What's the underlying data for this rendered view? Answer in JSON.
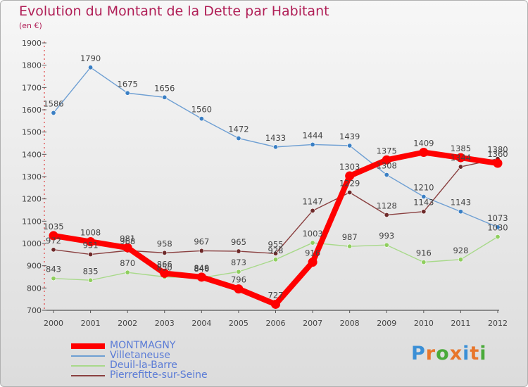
{
  "title": "Evolution du Montant de la Dette par Habitant",
  "subtitle": "(en €)",
  "brand": {
    "text": "Proxiti",
    "colors": [
      "#3a8fd6",
      "#e8762b",
      "#4aaa3a",
      "#e8762b",
      "#3a8fd6",
      "#e8762b",
      "#4aaa3a"
    ]
  },
  "chart_data": {
    "type": "line",
    "x": [
      "2000",
      "2001",
      "2002",
      "2003",
      "2004",
      "2005",
      "2006",
      "2007",
      "2008",
      "2009",
      "2010",
      "2011",
      "2012"
    ],
    "yticks": [
      "700",
      "800",
      "900",
      "1000",
      "1100",
      "1200",
      "1300",
      "1400",
      "1500",
      "1600",
      "1700",
      "1800",
      "1900"
    ],
    "ylim": [
      700,
      1900
    ],
    "grid": false,
    "legend_position": "bottom-left",
    "series": [
      {
        "name": "Villetaneuse",
        "color": "#6e9fd3",
        "marker": "#3a7fc4",
        "values": [
          1586,
          1790,
          1675,
          1656,
          1560,
          1472,
          1433,
          1444,
          1439,
          1308,
          1210,
          1143,
          1073
        ],
        "labels": [
          "1586",
          "1790",
          "1675",
          "1656",
          "1560",
          "1472",
          "1433",
          "1444",
          "1439",
          "1308",
          "1210",
          "1143",
          "1073"
        ]
      },
      {
        "name": "Deuil-la-Barre",
        "color": "#a8d98a",
        "marker": "#8fce5e",
        "values": [
          843,
          835,
          870,
          850,
          846,
          873,
          928,
          1003,
          987,
          993,
          916,
          928,
          1030
        ],
        "labels": [
          "843",
          "835",
          "870",
          "850",
          "846",
          "873",
          "928",
          "1003",
          "987",
          "993",
          "916",
          "928",
          "1030"
        ]
      },
      {
        "name": "Pierrefitte-sur-Seine",
        "color": "#8a4040",
        "marker": "#6e2a2a",
        "values": [
          972,
          951,
          968,
          958,
          967,
          965,
          955,
          1147,
          1229,
          1128,
          1143,
          1344,
          1380
        ],
        "labels": [
          "972",
          "951",
          "968",
          "958",
          "967",
          "965",
          "955",
          "1147",
          "1229",
          "1128",
          "1143",
          "1344",
          "1380"
        ]
      },
      {
        "name": "MONTMAGNY",
        "color": "#ff0000",
        "marker": "#ff0000",
        "values": [
          1035,
          1008,
          981,
          866,
          849,
          796,
          727,
          916,
          1303,
          1375,
          1409,
          1385,
          1360
        ],
        "labels": [
          "1035",
          "1008",
          "981",
          "866",
          "849",
          "796",
          "727",
          "916",
          "1303",
          "1375",
          "1409",
          "1385",
          "1360"
        ]
      }
    ],
    "legend": [
      "MONTMAGNY",
      "Villetaneuse",
      "Deuil-la-Barre",
      "Pierrefitte-sur-Seine"
    ]
  }
}
